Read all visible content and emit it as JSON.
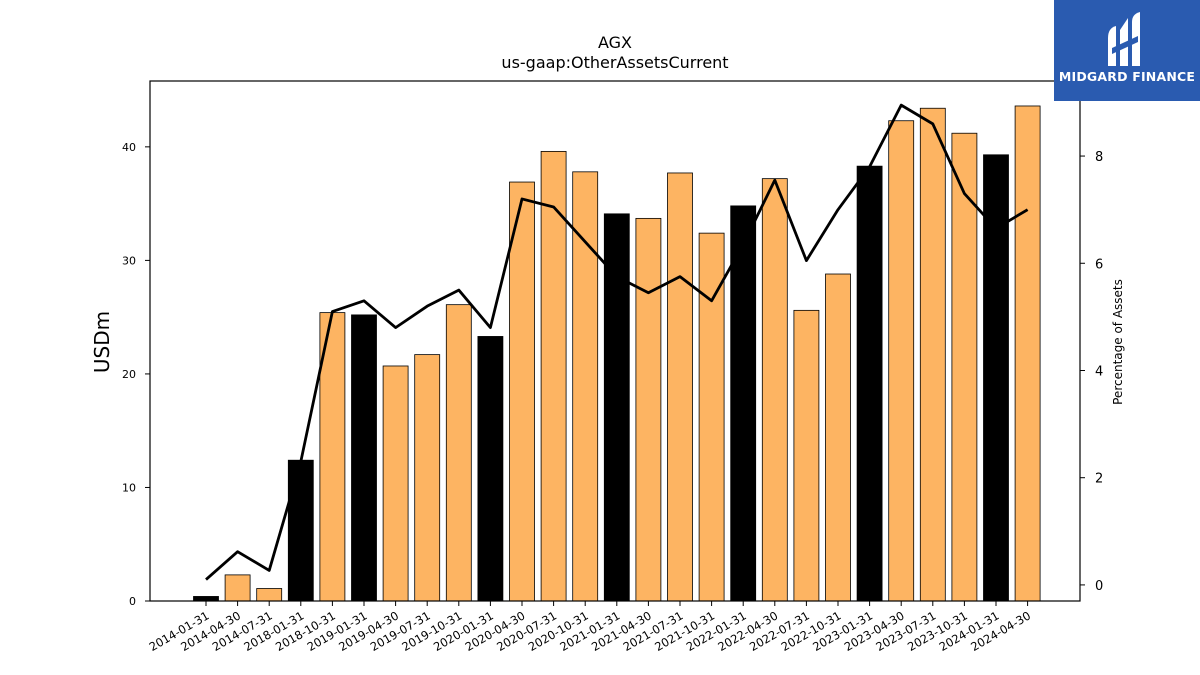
{
  "brand": {
    "name": "MIDGARD FINANCE",
    "logo_icon": "midgard-logo-icon",
    "color": "#2a5bb0"
  },
  "chart_data": {
    "type": "bar",
    "title": "AGX",
    "subtitle": "us-gaap:OtherAssetsCurrent",
    "ylabel": "USDm",
    "y2label": "Percentage of Assets",
    "ylim": [
      0,
      45.8
    ],
    "y2lim": [
      -0.3,
      9.4
    ],
    "yticks": [
      0,
      10,
      20,
      30,
      40
    ],
    "y2ticks": [
      0,
      2,
      4,
      6,
      8
    ],
    "colors": {
      "q4_bar": "#000000",
      "other_bar": "#fdb462",
      "line": "#000000"
    },
    "categories": [
      "2014-01-31",
      "2014-04-30",
      "2014-07-31",
      "2018-01-31",
      "2018-10-31",
      "2019-01-31",
      "2019-04-30",
      "2019-07-31",
      "2019-10-31",
      "2020-01-31",
      "2020-04-30",
      "2020-07-31",
      "2020-10-31",
      "2021-01-31",
      "2021-04-30",
      "2021-07-31",
      "2021-10-31",
      "2022-01-31",
      "2022-04-30",
      "2022-07-31",
      "2022-10-31",
      "2023-01-31",
      "2023-04-30",
      "2023-07-31",
      "2023-10-31",
      "2024-01-31",
      "2024-04-30"
    ],
    "series": [
      {
        "values": [
          0.4,
          2.3,
          1.1,
          12.4,
          25.4,
          25.2,
          20.7,
          21.7,
          26.1,
          23.3,
          36.9,
          39.6,
          37.8,
          34.1,
          33.7,
          37.7,
          32.4,
          34.8,
          37.2,
          25.6,
          28.8,
          38.3,
          42.3,
          43.4,
          41.2,
          39.3,
          43.6
        ]
      },
      {
        "values": [
          0.1,
          0.62,
          0.27,
          2.3,
          5.1,
          5.3,
          4.8,
          5.2,
          5.5,
          4.8,
          7.2,
          7.05,
          6.4,
          5.75,
          5.45,
          5.75,
          5.3,
          6.35,
          7.55,
          6.05,
          7.0,
          7.8,
          8.95,
          8.6,
          7.3,
          6.65,
          7.0
        ]
      }
    ]
  }
}
